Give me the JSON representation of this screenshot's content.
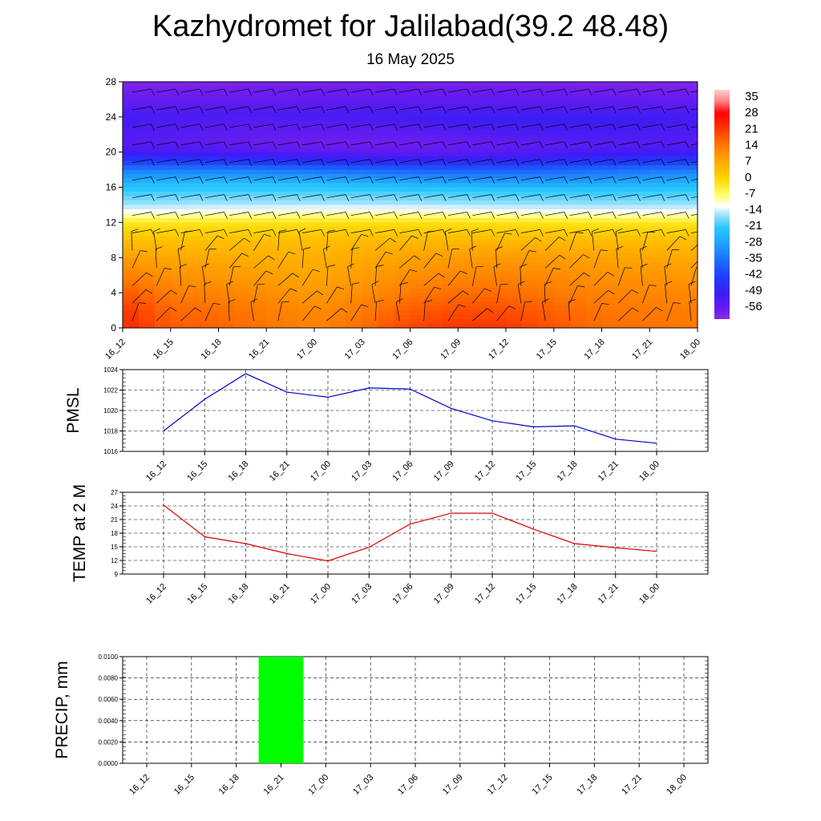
{
  "header": {
    "title": "Kazhydromet for Jalilabad(39.2 48.48)",
    "subtitle": "16 May 2025"
  },
  "chart_data": [
    {
      "type": "heatmap",
      "name": "Temperature cross-section with wind barbs",
      "x_ticks": [
        "16_12",
        "16_15",
        "16_18",
        "16_21",
        "17_00",
        "17_03",
        "17_06",
        "17_09",
        "17_12",
        "17_15",
        "17_18",
        "17_21",
        "18_00"
      ],
      "y_ticks": [
        0,
        4,
        8,
        12,
        16,
        20,
        24,
        28
      ],
      "ylim": [
        0,
        28
      ],
      "colorbar": {
        "labels": [
          "35",
          "28",
          "21",
          "14",
          "7",
          "0",
          "-7",
          "-14",
          "-21",
          "-28",
          "-35",
          "-42",
          "-49",
          "-56"
        ],
        "range": [
          -60,
          38
        ],
        "stops": [
          {
            "v": -60,
            "c": "#8a2be2"
          },
          {
            "v": -56,
            "c": "#6a1cf0"
          },
          {
            "v": -49,
            "c": "#3c1cf5"
          },
          {
            "v": -42,
            "c": "#1e3cff"
          },
          {
            "v": -35,
            "c": "#1e6cff"
          },
          {
            "v": -28,
            "c": "#1ea0ff"
          },
          {
            "v": -21,
            "c": "#28c8ff"
          },
          {
            "v": -15,
            "c": "#a8e4ff"
          },
          {
            "v": -12,
            "c": "#ffffff"
          },
          {
            "v": -7,
            "c": "#ffff70"
          },
          {
            "v": 0,
            "c": "#ffd700"
          },
          {
            "v": 7,
            "c": "#ffaa00"
          },
          {
            "v": 14,
            "c": "#ff7a00"
          },
          {
            "v": 21,
            "c": "#ff3a00"
          },
          {
            "v": 28,
            "c": "#ff0000"
          },
          {
            "v": 33,
            "c": "#ff8080"
          },
          {
            "v": 38,
            "c": "#ffd0d0"
          }
        ]
      },
      "profile": {
        "heights": [
          0,
          2,
          4,
          6,
          8,
          10,
          12,
          13,
          14,
          16,
          18,
          19,
          20,
          21,
          22,
          24,
          26,
          28
        ],
        "temps": [
          24,
          21,
          17,
          13,
          9,
          4,
          -2,
          -10,
          -15,
          -22,
          -35,
          -45,
          -52,
          -55,
          -53,
          -50,
          -55,
          -58
        ]
      },
      "surface_temps": [
        24,
        17,
        16,
        14,
        12,
        15,
        20,
        22,
        22,
        19,
        16,
        15,
        14
      ]
    },
    {
      "type": "line",
      "ylabel": "PMSL",
      "categories": [
        "16_12",
        "16_15",
        "16_18",
        "16_21",
        "17_00",
        "17_03",
        "17_06",
        "17_09",
        "17_12",
        "17_15",
        "17_18",
        "17_21",
        "18_00"
      ],
      "values": [
        1018.0,
        1021.1,
        1023.6,
        1021.8,
        1021.3,
        1022.2,
        1022.1,
        1020.2,
        1019.0,
        1018.4,
        1018.5,
        1017.2,
        1016.8
      ],
      "y_ticks": [
        1016,
        1018,
        1020,
        1022,
        1024
      ],
      "ylim": [
        1016,
        1024
      ],
      "color": "#0000cc",
      "grid": true
    },
    {
      "type": "line",
      "ylabel": "TEMP at 2 M",
      "categories": [
        "16_12",
        "16_15",
        "16_18",
        "16_21",
        "17_00",
        "17_03",
        "17_06",
        "17_09",
        "17_12",
        "17_15",
        "17_18",
        "17_21",
        "18_00"
      ],
      "values": [
        24.2,
        17.2,
        15.7,
        13.5,
        11.9,
        14.9,
        20.0,
        22.4,
        22.4,
        18.9,
        15.7,
        14.8,
        14.0
      ],
      "y_ticks": [
        9,
        12,
        15,
        18,
        21,
        24,
        27
      ],
      "ylim": [
        9,
        27
      ],
      "color": "#dd0000",
      "grid": true
    },
    {
      "type": "bar",
      "ylabel": "PRECIP, mm",
      "categories": [
        "16_12",
        "16_15",
        "16_18",
        "16_21",
        "17_00",
        "17_03",
        "17_06",
        "17_09",
        "17_12",
        "17_15",
        "17_18",
        "17_21",
        "18_00"
      ],
      "values": [
        0,
        0,
        0,
        0.01,
        0,
        0,
        0,
        0,
        0,
        0,
        0,
        0,
        0
      ],
      "y_ticks": [
        "0.0000",
        "0.0020",
        "0.0040",
        "0.0060",
        "0.0080",
        "0.0100"
      ],
      "ylim": [
        0,
        0.01
      ],
      "color": "#00ff00",
      "grid": true
    }
  ]
}
